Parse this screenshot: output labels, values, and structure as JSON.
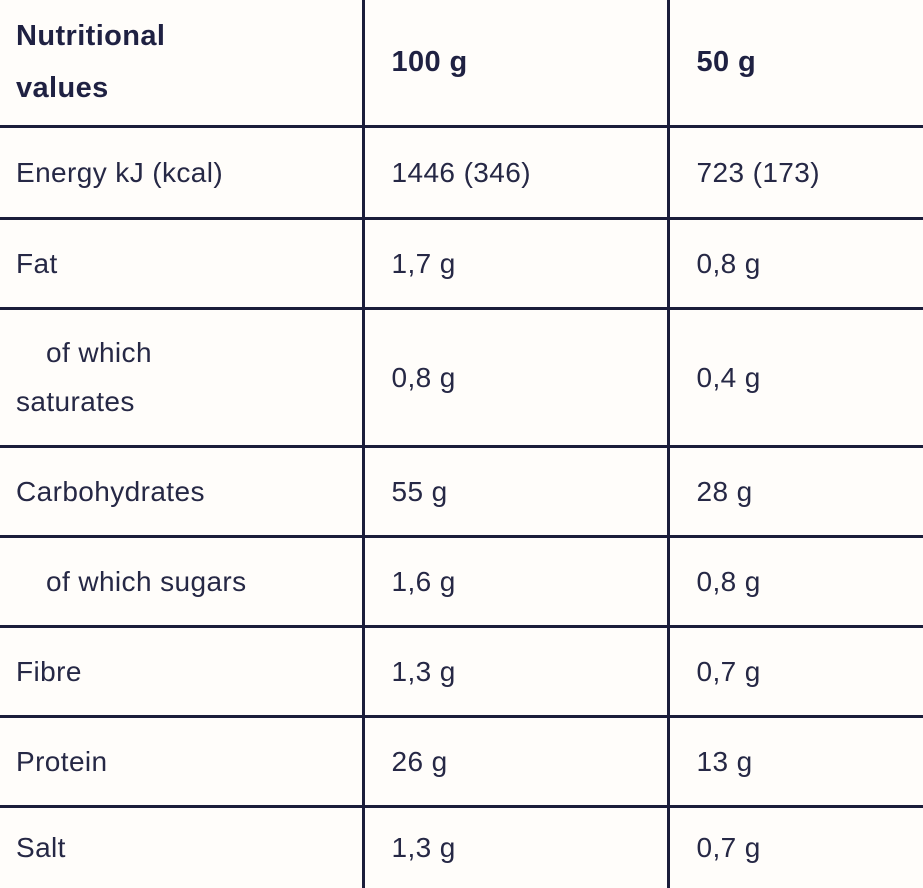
{
  "table": {
    "header": {
      "title": "Nutritional values",
      "col_100g": "100 g",
      "col_50g": "50 g"
    },
    "rows": [
      {
        "label": "Energy kJ (kcal)",
        "value_100g": "1446 (346)",
        "value_50g": "723 (173)",
        "indent": false
      },
      {
        "label": "Fat",
        "value_100g": "1,7 g",
        "value_50g": "0,8 g",
        "indent": false
      },
      {
        "label": "of which saturates",
        "value_100g": "0,8 g",
        "value_50g": "0,4 g",
        "indent": true
      },
      {
        "label": "Carbohydrates",
        "value_100g": "55 g",
        "value_50g": "28 g",
        "indent": false
      },
      {
        "label": "of which sugars",
        "value_100g": "1,6 g",
        "value_50g": "0,8 g",
        "indent": true
      },
      {
        "label": "Fibre",
        "value_100g": "1,3 g",
        "value_50g": "0,7 g",
        "indent": false
      },
      {
        "label": "Protein",
        "value_100g": "26 g",
        "value_50g": "13 g",
        "indent": false
      },
      {
        "label": "Salt",
        "value_100g": "1,3 g",
        "value_50g": "0,7 g",
        "indent": false
      }
    ],
    "colors": {
      "text": "#262845",
      "header_text": "#1f2142",
      "border": "#1b1d3a",
      "background": "#fffdfa"
    }
  }
}
